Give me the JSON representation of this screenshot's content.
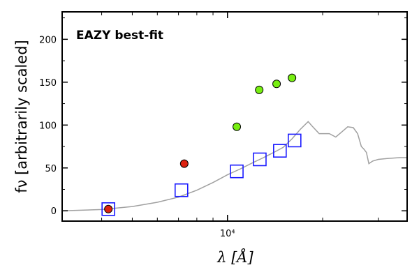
{
  "chart_data": {
    "type": "scatter",
    "annotation": "EAZY best-fit",
    "annotation_color": "#ff0000",
    "xlabel": "λ [Å]",
    "ylabel": "fν [arbitrarily scaled]",
    "x_scale": "log",
    "xlim": [
      3000,
      37000
    ],
    "ylim": [
      -12,
      232
    ],
    "y_ticks": [
      0,
      50,
      100,
      150,
      200
    ],
    "x_tick_label": "10⁴",
    "grid": false,
    "template_color": "#a0a0a0",
    "template": {
      "x": [
        3000,
        4000,
        5000,
        6000,
        7000,
        8000,
        9000,
        10000,
        11000,
        12000,
        13000,
        14000,
        15000,
        16000,
        17000,
        18000,
        18500,
        19500,
        21000,
        22000,
        23000,
        24000,
        25000,
        25800,
        26500,
        27000,
        27500,
        28000,
        28800,
        30000,
        32000,
        35000,
        37000
      ],
      "y": [
        0,
        1.5,
        5,
        10,
        16,
        24,
        33,
        42,
        49,
        56,
        62,
        68,
        74,
        84,
        95,
        104,
        99,
        90,
        90,
        86,
        92,
        98,
        97,
        90,
        75,
        72,
        68,
        55,
        58,
        60,
        61,
        62,
        62
      ]
    },
    "series": [
      {
        "marker": "square-open",
        "color": "#1a1aff",
        "x": [
          4200,
          7150,
          10700,
          12650,
          14650,
          16300
        ],
        "y": [
          2,
          24,
          46,
          60,
          70,
          82
        ]
      },
      {
        "marker": "circle",
        "color": "#dd2211",
        "x": [
          4200,
          7300
        ],
        "y": [
          2,
          55
        ]
      },
      {
        "marker": "circle",
        "color": "#77ee11",
        "x": [
          10700,
          12600,
          14300,
          16000
        ],
        "y": [
          98,
          141,
          148,
          155
        ]
      }
    ]
  }
}
